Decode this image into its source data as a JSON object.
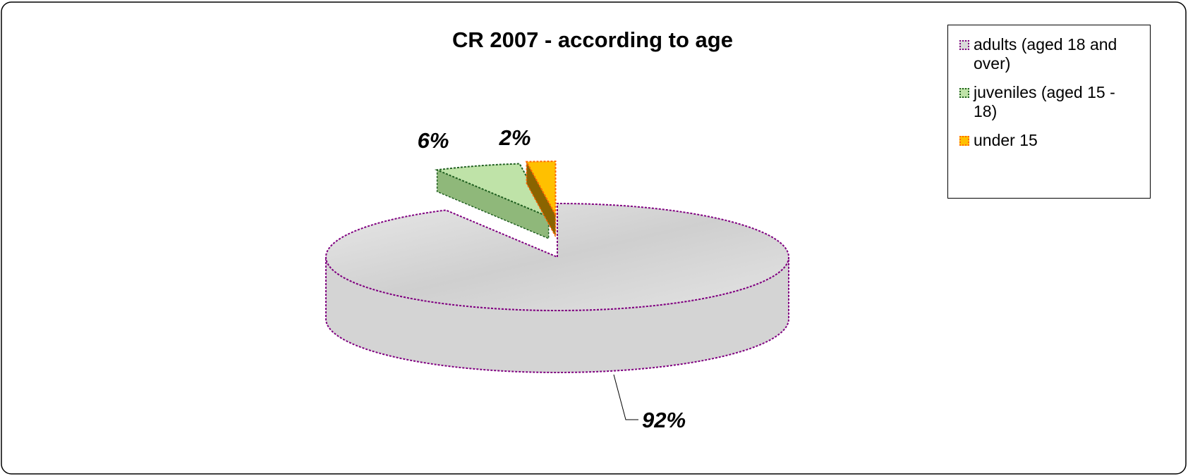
{
  "chart_data": {
    "type": "pie",
    "title": "CR 2007 - according to age",
    "categories": [
      "adults (aged 18 and over)",
      "juveniles (aged 15 - 18)",
      "under 15"
    ],
    "values": [
      92,
      6,
      2
    ],
    "value_labels": [
      "92%",
      "6%",
      "2%"
    ],
    "colors": [
      "#d9d9d9",
      "#bfe3a8",
      "#ffc000"
    ],
    "legend": "right"
  }
}
